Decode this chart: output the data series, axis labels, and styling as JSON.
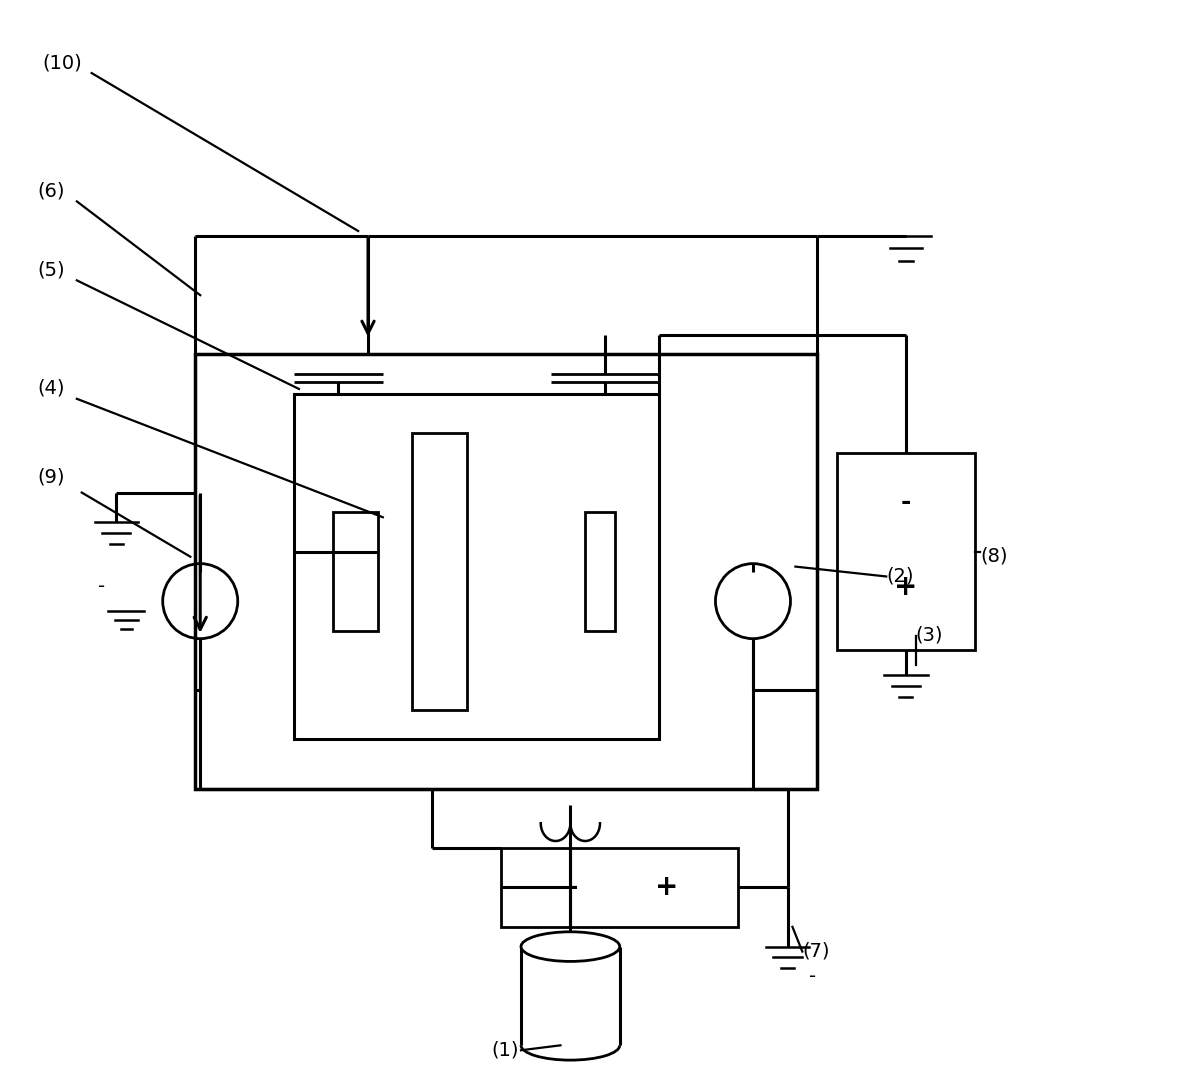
{
  "bg_color": "#ffffff",
  "lw_main": 2.2,
  "lw_thin": 1.6,
  "fontsize_label": 14
}
